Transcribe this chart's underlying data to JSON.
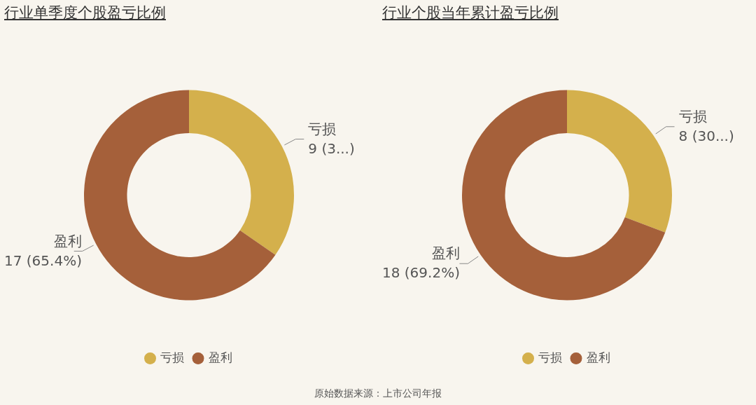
{
  "chart_data": [
    {
      "type": "donut",
      "title": "行业单季度个股盈亏比例",
      "categories": [
        "亏损",
        "盈利"
      ],
      "values": [
        9,
        17
      ],
      "colors": [
        "#d4b04c",
        "#a5603a"
      ],
      "value_labels": [
        "9 (3...)",
        "17 (65.4%)"
      ],
      "legend": "bottom",
      "annotations": [
        "原始数据来源：上市公司年报"
      ]
    },
    {
      "type": "donut",
      "title": "行业个股当年累计盈亏比例",
      "categories": [
        "亏损",
        "盈利"
      ],
      "values": [
        8,
        18
      ],
      "colors": [
        "#d4b04c",
        "#a5603a"
      ],
      "value_labels": [
        "8 (30...)",
        "18 (69.2%)"
      ],
      "legend": "bottom"
    }
  ]
}
